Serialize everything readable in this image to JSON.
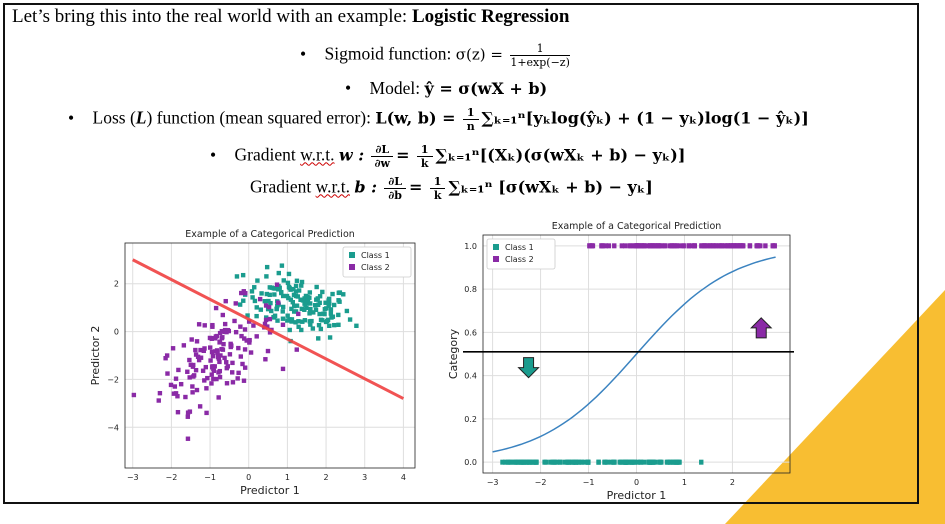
{
  "intro": {
    "text": "Let’s bring this into the real world with an example:",
    "bold": "Logistic Regression"
  },
  "bullets": {
    "sigmoid_label": "Sigmoid function:",
    "sigmoid_lhs": "σ(z) =",
    "sigmoid_num": "1",
    "sigmoid_den": "1+exp(−z)",
    "model_label": "Model:",
    "model_eq": "ŷ = σ(wX + b)",
    "loss_label_a": "Loss (",
    "loss_label_L": "L",
    "loss_label_b": ") function (mean squared error):",
    "loss_eq_lhs": "L(w, b) =",
    "loss_frac_num": "1",
    "loss_frac_den": "n",
    "loss_eq_rhs": "∑ₖ₌₁ⁿ[yₖlog(ŷₖ) + (1 − yₖ)log(1 − ŷₖ)]",
    "grad_w_label": "Gradient",
    "grad_w_wrt": "w.r.t.",
    "grad_w_var": "w :",
    "grad_w_frac_num": "∂L",
    "grad_w_frac_den": "∂w",
    "grad_w_eq_mid": "=",
    "grad_w_k_num": "1",
    "grad_w_k_den": "k",
    "grad_w_rhs": "∑ₖ₌₁ⁿ[(Xₖ)(σ(wXₖ + b) − yₖ)]",
    "grad_b_label": "Gradient",
    "grad_b_wrt": "w.r.t.",
    "grad_b_var": "b :",
    "grad_b_frac_num": "∂L",
    "grad_b_frac_den": "∂b",
    "grad_b_eq_mid": "=",
    "grad_b_k_num": "1",
    "grad_b_k_den": "k",
    "grad_b_rhs": "∑ₖ₌₁ⁿ [σ(wXₖ + b) − yₖ]"
  },
  "colors": {
    "class1": "#1a9c8e",
    "class2": "#8a2aa6",
    "boundary": "#f04040",
    "sigmoid": "#3b83c0",
    "accent": "#f8be32"
  },
  "chart_data": [
    {
      "type": "scatter",
      "title": "Example of a Categorical Prediction",
      "xlabel": "Predictor 1",
      "ylabel": "Predictor 2",
      "xlim": [
        -3.2,
        4.3
      ],
      "ylim": [
        -5.7,
        3.7
      ],
      "xticks": [
        -3,
        -2,
        -1,
        0,
        1,
        2,
        3,
        4
      ],
      "yticks": [
        -4,
        -2,
        0,
        2
      ],
      "grid": true,
      "legend": "top-right",
      "series": [
        {
          "name": "Class 1",
          "center": [
            1.3,
            1.1
          ],
          "spread": [
            0.7,
            0.6
          ],
          "count": 160
        },
        {
          "name": "Class 2",
          "center": [
            -0.8,
            -0.9
          ],
          "spread": [
            0.75,
            1.0
          ],
          "count": 160
        }
      ],
      "decision_boundary": {
        "x": [
          -3,
          4
        ],
        "y": [
          3.0,
          -2.8
        ]
      }
    },
    {
      "type": "scatter",
      "title": "Example of a Categorical Prediction",
      "xlabel": "Predictor 1",
      "ylabel": "Category",
      "xlim": [
        -3.2,
        3.2
      ],
      "ylim": [
        -0.05,
        1.05
      ],
      "xticks": [
        -3,
        -2,
        -1,
        0,
        1,
        2
      ],
      "yticks": [
        0.0,
        0.2,
        0.4,
        0.6,
        0.8,
        1.0
      ],
      "ytick_labels": [
        "0.0",
        "0.2",
        "0.4",
        "0.6",
        "0.8",
        "1.0"
      ],
      "grid": true,
      "legend": "top-left",
      "series": [
        {
          "name": "Class 1",
          "y": 0,
          "x_range": [
            -2.8,
            0.9
          ],
          "outlier": 1.35
        },
        {
          "name": "Class 2",
          "y": 1,
          "x_range": [
            -1.0,
            2.9
          ],
          "outlier": -2.85
        }
      ],
      "sigmoid_curve": {
        "x_range": [
          -3,
          2.9
        ],
        "k": 1.0
      },
      "threshold": 0.51
    }
  ]
}
